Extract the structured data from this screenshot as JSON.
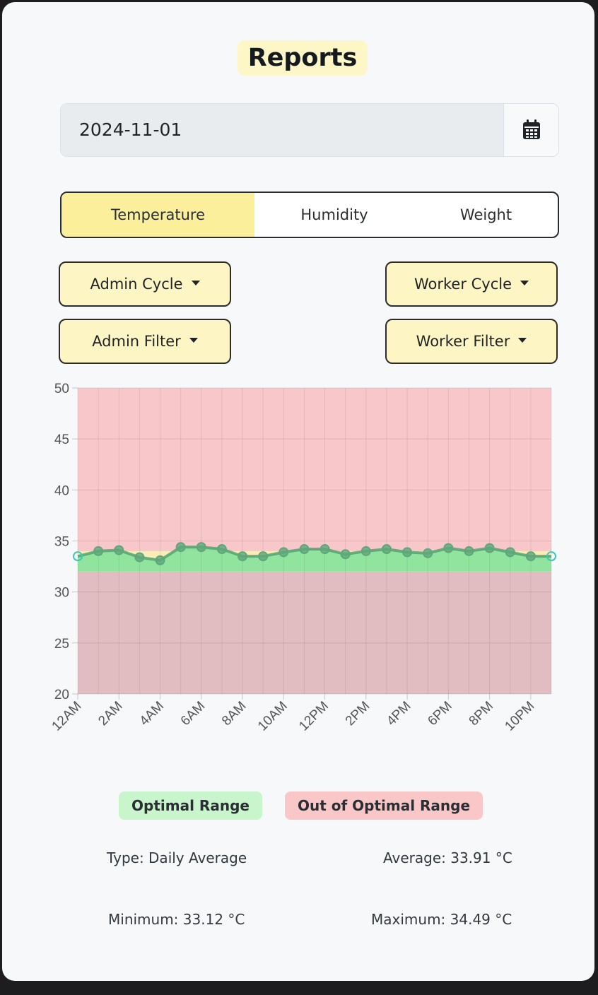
{
  "page": {
    "title": "Reports"
  },
  "date_picker": {
    "value": "2024-11-01",
    "icon": "calendar-icon"
  },
  "tabs": [
    {
      "label": "Temperature",
      "active": true
    },
    {
      "label": "Humidity",
      "active": false
    },
    {
      "label": "Weight",
      "active": false
    }
  ],
  "dropdowns": {
    "admin_cycle": "Admin Cycle",
    "worker_cycle": "Worker Cycle",
    "admin_filter": "Admin Filter",
    "worker_filter": "Worker Filter"
  },
  "colors": {
    "accent_yellow": "#fbef9c",
    "optimal_green": "#7fe39a",
    "out_of_range_red": "#f7a6aa",
    "line_teal": "#3dc8b5"
  },
  "legend": {
    "optimal": "Optimal Range",
    "out_of_optimal": "Out of Optimal Range"
  },
  "stats": {
    "type": "Type: Daily Average",
    "average": "Average: 33.91 °C",
    "minimum": "Minimum: 33.12 °C",
    "maximum": "Maximum: 34.49 °C"
  },
  "chart_data": {
    "type": "line",
    "x": [
      "12AM",
      "1AM",
      "2AM",
      "3AM",
      "4AM",
      "5AM",
      "6AM",
      "7AM",
      "8AM",
      "9AM",
      "10AM",
      "11AM",
      "12PM",
      "1PM",
      "2PM",
      "3PM",
      "4PM",
      "5PM",
      "6PM",
      "7PM",
      "8PM",
      "9PM",
      "10PM",
      "11PM"
    ],
    "x_tick_labels": [
      "12AM",
      "2AM",
      "4AM",
      "6AM",
      "8AM",
      "10AM",
      "12PM",
      "2PM",
      "4PM",
      "6PM",
      "8PM",
      "10PM"
    ],
    "values": [
      33.5,
      34.0,
      34.1,
      33.4,
      33.1,
      34.4,
      34.4,
      34.2,
      33.5,
      33.5,
      33.9,
      34.2,
      34.2,
      33.7,
      34.0,
      34.2,
      33.9,
      33.8,
      34.3,
      34.0,
      34.3,
      33.9,
      33.5,
      33.5
    ],
    "ylim": [
      20,
      50
    ],
    "y_ticks": [
      "20",
      "25",
      "30",
      "35",
      "40",
      "45",
      "50"
    ],
    "optimal_range": [
      32,
      34
    ],
    "grid": true
  }
}
